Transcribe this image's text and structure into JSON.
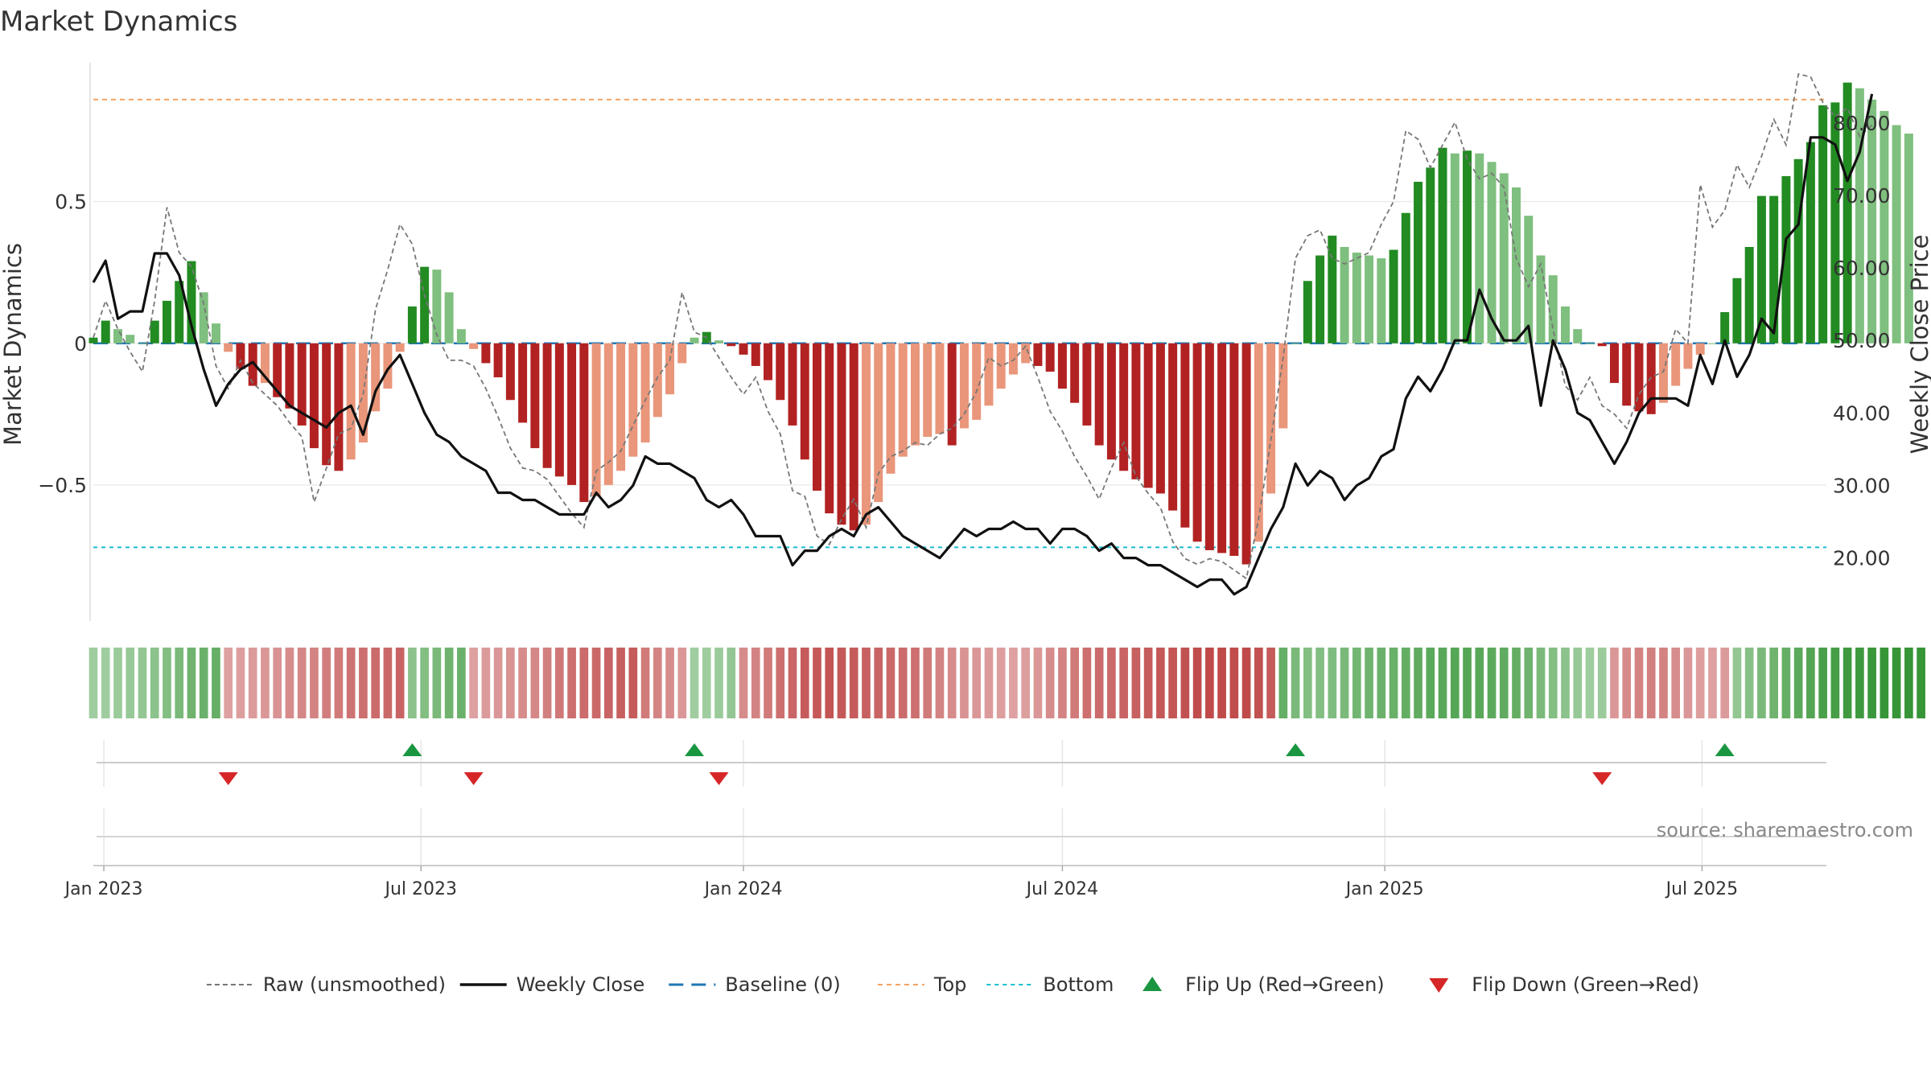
{
  "title": "Market Dynamics",
  "source": "source: sharemaestro.com",
  "colors": {
    "strong_green": "#228b22",
    "light_green": "#7fbf7f",
    "strong_red": "#b22222",
    "light_red": "#e9967a",
    "price": "#111111",
    "raw": "#777777",
    "baseline": "#1f77b4",
    "top": "#f4a261",
    "bottom": "#17becf",
    "flip_up": "#1a9641",
    "flip_down": "#d62728"
  },
  "chart_data": {
    "type": "bar",
    "ylabel": "Market Dynamics",
    "ylabel_right": "Weekly Close Price",
    "yticks_left": [
      "0.5",
      "0",
      "−0.5"
    ],
    "yticks_left_values": [
      0.5,
      0,
      -0.5
    ],
    "yticks_right": [
      "80.00",
      "70.00",
      "60.00",
      "50.00",
      "40.00",
      "30.00",
      "20.00"
    ],
    "yticks_right_values": [
      80,
      70,
      60,
      50,
      40,
      30,
      20
    ],
    "ylim_left": [
      -0.98,
      0.99
    ],
    "ylim_right": [
      11.3,
      88.3
    ],
    "xlim": [
      "2022-12-26",
      "2025-09-10"
    ],
    "x_ticks": [
      {
        "label": "Jan 2023",
        "date": "2023-01-01"
      },
      {
        "label": "Jul 2023",
        "date": "2023-07-01"
      },
      {
        "label": "Jan 2024",
        "date": "2024-01-01"
      },
      {
        "label": "Jul 2024",
        "date": "2024-07-01"
      },
      {
        "label": "Jan 2025",
        "date": "2025-01-01"
      },
      {
        "label": "Jul 2025",
        "date": "2025-07-01"
      }
    ],
    "top_line": 0.86,
    "bottom_line": -0.72,
    "baseline": 0,
    "start_date": "2022-12-26",
    "interval_days": 7,
    "bar_values": [
      0.02,
      0.08,
      0.05,
      0.03,
      0.0,
      0.08,
      0.15,
      0.22,
      0.29,
      0.18,
      0.07,
      -0.03,
      -0.09,
      -0.15,
      -0.14,
      -0.19,
      -0.23,
      -0.29,
      -0.37,
      -0.43,
      -0.45,
      -0.41,
      -0.35,
      -0.24,
      -0.16,
      -0.03,
      0.13,
      0.27,
      0.26,
      0.18,
      0.05,
      -0.02,
      -0.07,
      -0.12,
      -0.2,
      -0.28,
      -0.37,
      -0.44,
      -0.47,
      -0.5,
      -0.56,
      -0.54,
      -0.5,
      -0.45,
      -0.4,
      -0.35,
      -0.26,
      -0.18,
      -0.07,
      0.02,
      0.04,
      0.01,
      -0.01,
      -0.04,
      -0.08,
      -0.13,
      -0.2,
      -0.29,
      -0.41,
      -0.52,
      -0.6,
      -0.64,
      -0.66,
      -0.64,
      -0.56,
      -0.46,
      -0.4,
      -0.36,
      -0.33,
      -0.32,
      -0.36,
      -0.3,
      -0.27,
      -0.22,
      -0.16,
      -0.11,
      -0.07,
      -0.08,
      -0.1,
      -0.16,
      -0.21,
      -0.29,
      -0.36,
      -0.41,
      -0.45,
      -0.48,
      -0.51,
      -0.53,
      -0.59,
      -0.65,
      -0.7,
      -0.73,
      -0.74,
      -0.75,
      -0.78,
      -0.7,
      -0.53,
      -0.3,
      0.0,
      0.22,
      0.31,
      0.38,
      0.34,
      0.32,
      0.31,
      0.3,
      0.33,
      0.46,
      0.57,
      0.62,
      0.69,
      0.67,
      0.68,
      0.67,
      0.64,
      0.6,
      0.55,
      0.45,
      0.31,
      0.24,
      0.13,
      0.05,
      0.0,
      -0.01,
      -0.14,
      -0.22,
      -0.24,
      -0.25,
      -0.21,
      -0.15,
      -0.09,
      -0.04,
      0.0,
      0.11,
      0.23,
      0.34,
      0.52,
      0.52,
      0.59,
      0.65,
      0.71,
      0.84,
      0.85,
      0.92,
      0.9,
      0.86,
      0.82,
      0.77,
      0.74
    ],
    "raw_values": [
      0.02,
      0.15,
      0.05,
      -0.03,
      -0.1,
      0.15,
      0.48,
      0.32,
      0.27,
      0.14,
      -0.08,
      -0.16,
      -0.06,
      -0.14,
      -0.18,
      -0.22,
      -0.28,
      -0.33,
      -0.56,
      -0.44,
      -0.32,
      -0.3,
      -0.18,
      0.12,
      0.26,
      0.42,
      0.35,
      0.17,
      0.03,
      -0.06,
      -0.06,
      -0.08,
      -0.16,
      -0.26,
      -0.37,
      -0.44,
      -0.45,
      -0.48,
      -0.54,
      -0.6,
      -0.65,
      -0.45,
      -0.42,
      -0.38,
      -0.29,
      -0.2,
      -0.12,
      -0.06,
      0.18,
      0.04,
      0.02,
      -0.05,
      -0.12,
      -0.18,
      -0.12,
      -0.24,
      -0.32,
      -0.52,
      -0.54,
      -0.68,
      -0.71,
      -0.62,
      -0.55,
      -0.65,
      -0.46,
      -0.4,
      -0.38,
      -0.35,
      -0.36,
      -0.32,
      -0.3,
      -0.25,
      -0.17,
      -0.05,
      -0.08,
      -0.06,
      -0.01,
      -0.12,
      -0.24,
      -0.31,
      -0.4,
      -0.47,
      -0.55,
      -0.44,
      -0.35,
      -0.47,
      -0.53,
      -0.58,
      -0.7,
      -0.76,
      -0.78,
      -0.76,
      -0.77,
      -0.8,
      -0.83,
      -0.62,
      -0.34,
      -0.05,
      0.3,
      0.38,
      0.4,
      0.3,
      0.28,
      0.3,
      0.32,
      0.42,
      0.5,
      0.75,
      0.72,
      0.62,
      0.7,
      0.78,
      0.65,
      0.58,
      0.6,
      0.55,
      0.3,
      0.2,
      0.28,
      0.05,
      -0.15,
      -0.2,
      -0.12,
      -0.22,
      -0.25,
      -0.3,
      -0.18,
      -0.12,
      -0.1,
      0.05,
      0.0,
      0.56,
      0.41,
      0.47,
      0.63,
      0.55,
      0.66,
      0.79,
      0.7,
      0.95,
      0.94,
      0.85,
      0.8,
      0.83,
      0.73,
      0.77
    ],
    "price_values": [
      58,
      61,
      53,
      54,
      54,
      62,
      62,
      59,
      52,
      46,
      41,
      44,
      46,
      47,
      45,
      43,
      41,
      40,
      39,
      38,
      40,
      41,
      37,
      43,
      46,
      48,
      44,
      40,
      37,
      36,
      34,
      33,
      32,
      29,
      29,
      28,
      28,
      27,
      26,
      26,
      26,
      29,
      27,
      28,
      30,
      34,
      33,
      33,
      32,
      31,
      28,
      27,
      28,
      26,
      23,
      23,
      23,
      19,
      21,
      21,
      23,
      24,
      23,
      26,
      27,
      25,
      23,
      22,
      21,
      20,
      22,
      24,
      23,
      24,
      24,
      25,
      24,
      24,
      22,
      24,
      24,
      23,
      21,
      22,
      20,
      20,
      19,
      19,
      18,
      17,
      16,
      17,
      17,
      15,
      16,
      20,
      24,
      27,
      33,
      30,
      32,
      31,
      28,
      30,
      31,
      34,
      35,
      42,
      45,
      43,
      46,
      50,
      50,
      57,
      53,
      50,
      50,
      52,
      41,
      50,
      46,
      40,
      39,
      36,
      33,
      36,
      40,
      42,
      42,
      42,
      41,
      48,
      44,
      50,
      45,
      48,
      53,
      51,
      64,
      66,
      78,
      78,
      77,
      72,
      76,
      84
    ],
    "regime_strength": [
      0.35,
      0.35,
      0.38,
      0.4,
      0.42,
      0.45,
      0.5,
      0.55,
      0.6,
      0.62,
      0.65,
      0.35,
      0.36,
      0.38,
      0.4,
      0.42,
      0.45,
      0.48,
      0.5,
      0.53,
      0.55,
      0.58,
      0.6,
      0.62,
      0.64,
      0.66,
      0.45,
      0.5,
      0.55,
      0.6,
      0.62,
      0.35,
      0.38,
      0.4,
      0.42,
      0.45,
      0.48,
      0.52,
      0.56,
      0.6,
      0.62,
      0.64,
      0.66,
      0.68,
      0.7,
      0.55,
      0.5,
      0.45,
      0.4,
      0.35,
      0.35,
      0.38,
      0.42,
      0.45,
      0.5,
      0.55,
      0.6,
      0.65,
      0.7,
      0.72,
      0.74,
      0.72,
      0.7,
      0.68,
      0.66,
      0.64,
      0.62,
      0.6,
      0.55,
      0.5,
      0.45,
      0.42,
      0.4,
      0.38,
      0.36,
      0.35,
      0.36,
      0.4,
      0.45,
      0.5,
      0.55,
      0.6,
      0.62,
      0.64,
      0.66,
      0.68,
      0.7,
      0.72,
      0.74,
      0.76,
      0.78,
      0.8,
      0.8,
      0.78,
      0.8,
      0.76,
      0.7,
      0.65,
      0.55,
      0.5,
      0.5,
      0.52,
      0.55,
      0.58,
      0.6,
      0.62,
      0.64,
      0.66,
      0.68,
      0.7,
      0.72,
      0.74,
      0.74,
      0.72,
      0.7,
      0.68,
      0.66,
      0.6,
      0.55,
      0.5,
      0.45,
      0.4,
      0.35,
      0.38,
      0.4,
      0.45,
      0.5,
      0.52,
      0.5,
      0.45,
      0.4,
      0.36,
      0.35,
      0.38,
      0.42,
      0.48,
      0.55,
      0.6,
      0.65,
      0.7,
      0.75,
      0.8,
      0.82,
      0.85,
      0.86,
      0.88,
      0.9,
      0.9,
      0.9,
      0.9
    ],
    "regime_signs": [
      1,
      1,
      1,
      1,
      1,
      1,
      1,
      1,
      1,
      1,
      1,
      -1,
      -1,
      -1,
      -1,
      -1,
      -1,
      -1,
      -1,
      -1,
      -1,
      -1,
      -1,
      -1,
      -1,
      -1,
      1,
      1,
      1,
      1,
      1,
      -1,
      -1,
      -1,
      -1,
      -1,
      -1,
      -1,
      -1,
      -1,
      -1,
      -1,
      -1,
      -1,
      -1,
      -1,
      -1,
      -1,
      -1,
      1,
      1,
      1,
      1,
      -1,
      -1,
      -1,
      -1,
      -1,
      -1,
      -1,
      -1,
      -1,
      -1,
      -1,
      -1,
      -1,
      -1,
      -1,
      -1,
      -1,
      -1,
      -1,
      -1,
      -1,
      -1,
      -1,
      -1,
      -1,
      -1,
      -1,
      -1,
      -1,
      -1,
      -1,
      -1,
      -1,
      -1,
      -1,
      -1,
      -1,
      -1,
      -1,
      -1,
      -1,
      -1,
      -1,
      -1,
      1,
      1,
      1,
      1,
      1,
      1,
      1,
      1,
      1,
      1,
      1,
      1,
      1,
      1,
      1,
      1,
      1,
      1,
      1,
      1,
      1,
      1,
      1,
      1,
      1,
      1,
      1,
      -1,
      -1,
      -1,
      -1,
      -1,
      -1,
      -1,
      -1,
      -1,
      -1,
      1,
      1,
      1,
      1,
      1,
      1,
      1,
      1,
      1,
      1,
      1,
      1,
      1,
      1,
      1,
      1,
      1,
      1
    ],
    "flips_up": [
      26,
      49,
      98,
      133
    ],
    "flips_down": [
      11,
      31,
      51,
      123
    ],
    "legend": [
      {
        "label": "Raw (unsmoothed)",
        "kind": "dashed-gray"
      },
      {
        "label": "Weekly Close",
        "kind": "solid-black"
      },
      {
        "label": "Baseline (0)",
        "kind": "dashed-blue"
      },
      {
        "label": "Top",
        "kind": "dotted-orange"
      },
      {
        "label": "Bottom",
        "kind": "dotted-cyan"
      },
      {
        "label": "Flip Up (Red→Green)",
        "kind": "triangle-up"
      },
      {
        "label": "Flip Down (Green→Red)",
        "kind": "triangle-down"
      }
    ],
    "legend_position": "bottom-center",
    "grid": true
  }
}
